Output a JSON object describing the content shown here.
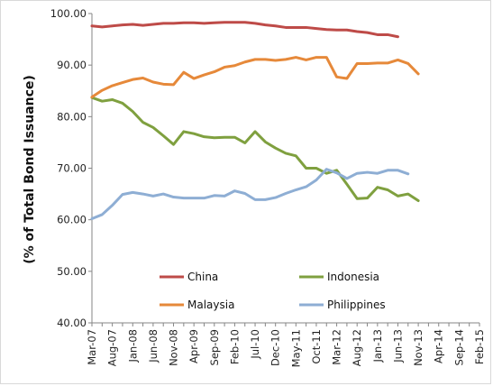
{
  "chart_data": {
    "type": "line",
    "title": "",
    "ylabel": "(% of Total Bond Issuance)",
    "xlabel": "",
    "ylim": [
      40,
      100
    ],
    "yticks": [
      "40.00",
      "50.00",
      "60.00",
      "70.00",
      "80.00",
      "90.00",
      "100.00"
    ],
    "grid": false,
    "legend_position": "lower-center",
    "x": [
      "Mar-07",
      "Jun-07",
      "Aug-07",
      "Nov-07",
      "Jan-08",
      "Apr-08",
      "Jun-08",
      "Sep-08",
      "Nov-08",
      "Feb-09",
      "Apr-09",
      "Jul-09",
      "Sep-09",
      "Dec-09",
      "Feb-10",
      "May-10",
      "Jul-10",
      "Oct-10",
      "Dec-10",
      "Mar-11",
      "May-11",
      "Aug-11",
      "Oct-11",
      "Jan-12",
      "Mar-12",
      "Jun-12",
      "Aug-12",
      "Nov-12",
      "Jan-13",
      "Apr-13",
      "Jun-13",
      "Sep-13",
      "Nov-13",
      "Feb-14",
      "Apr-14",
      "Jul-14",
      "Sep-14",
      "Dec-14",
      "Feb-15"
    ],
    "xticks": [
      "Mar-07",
      "Aug-07",
      "Jan-08",
      "Jun-08",
      "Nov-08",
      "Apr-09",
      "Sep-09",
      "Feb-10",
      "Jul-10",
      "Dec-10",
      "May-11",
      "Oct-11",
      "Mar-12",
      "Aug-12",
      "Jan-13",
      "Jun-13",
      "Nov-13",
      "Apr-14",
      "Sep-14",
      "Feb-15"
    ],
    "series": [
      {
        "name": "China",
        "color": "#be4b48",
        "values": [
          97.6,
          97.4,
          97.6,
          97.8,
          97.9,
          97.7,
          97.9,
          98.1,
          98.1,
          98.2,
          98.2,
          98.1,
          98.2,
          98.3,
          98.3,
          98.3,
          98.1,
          97.8,
          97.6,
          97.3,
          97.3,
          97.3,
          97.1,
          96.9,
          96.8,
          96.8,
          96.5,
          96.3,
          95.9,
          95.9,
          95.5,
          null,
          null,
          null,
          null,
          null,
          null,
          null,
          null
        ]
      },
      {
        "name": "Indonesia",
        "color": "#7fa03f",
        "values": [
          83.7,
          83.0,
          83.3,
          82.6,
          81.0,
          78.9,
          77.9,
          76.3,
          74.6,
          77.1,
          76.7,
          76.1,
          75.9,
          76.0,
          76.0,
          74.9,
          77.1,
          75.1,
          73.9,
          72.9,
          72.4,
          70.0,
          70.0,
          69.0,
          69.6,
          66.9,
          64.1,
          64.2,
          66.3,
          65.8,
          64.6,
          65.0,
          63.7,
          null,
          null,
          null,
          null,
          null,
          null
        ]
      },
      {
        "name": "Malaysia",
        "color": "#e6893a",
        "values": [
          83.8,
          85.1,
          86.0,
          86.6,
          87.2,
          87.5,
          86.7,
          86.3,
          86.2,
          88.6,
          87.4,
          88.1,
          88.7,
          89.6,
          89.9,
          90.6,
          91.1,
          91.1,
          90.9,
          91.1,
          91.5,
          91.0,
          91.5,
          91.5,
          87.7,
          87.4,
          90.3,
          90.3,
          90.4,
          90.4,
          91.0,
          90.3,
          88.3,
          null,
          null,
          null,
          null,
          null,
          null
        ]
      },
      {
        "name": "Philippines",
        "color": "#8eaed4",
        "values": [
          60.2,
          61.0,
          62.8,
          64.9,
          65.3,
          65.0,
          64.6,
          65.0,
          64.4,
          64.2,
          64.2,
          64.2,
          64.7,
          64.6,
          65.6,
          65.1,
          63.9,
          63.9,
          64.3,
          65.1,
          65.8,
          66.4,
          67.7,
          69.8,
          69.1,
          68.0,
          69.0,
          69.2,
          69.0,
          69.6,
          69.6,
          68.9,
          null,
          null,
          null,
          null,
          null,
          null,
          null
        ]
      }
    ]
  }
}
